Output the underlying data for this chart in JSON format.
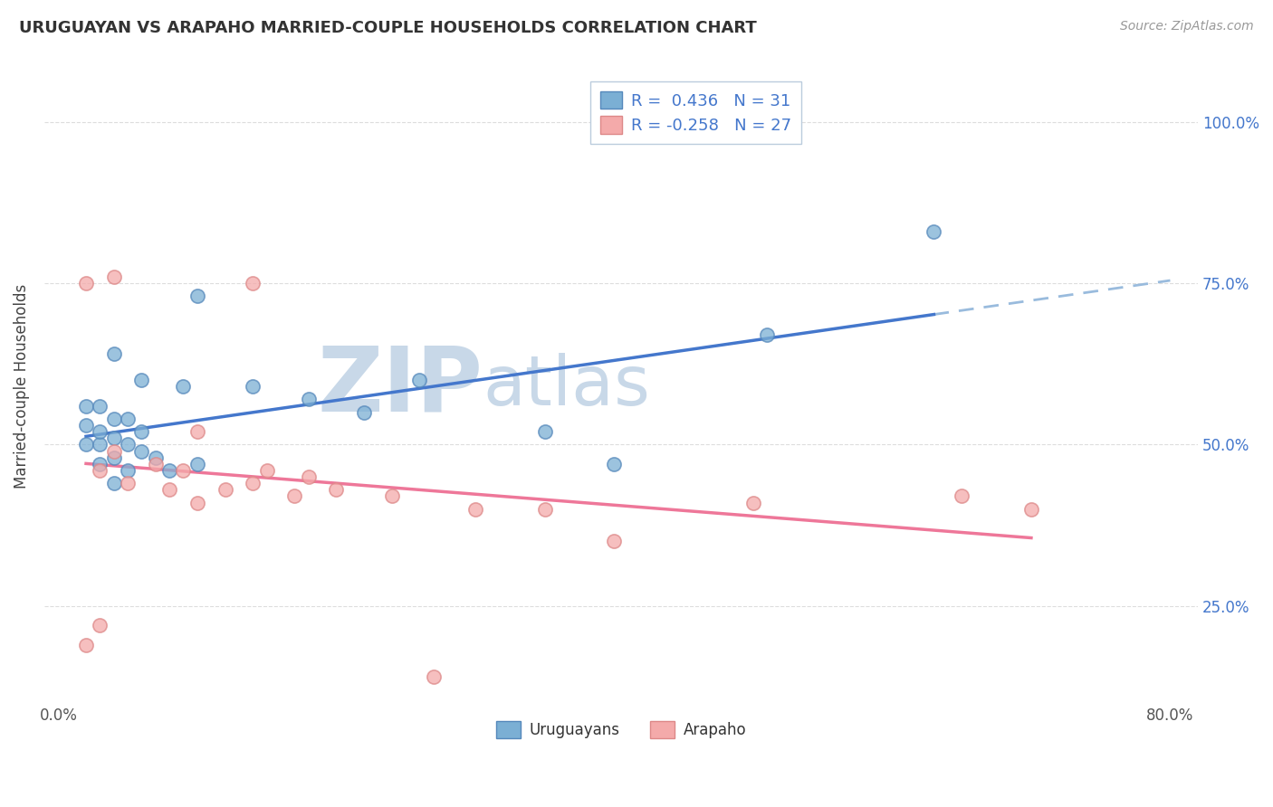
{
  "title": "URUGUAYAN VS ARAPAHO MARRIED-COUPLE HOUSEHOLDS CORRELATION CHART",
  "source": "Source: ZipAtlas.com",
  "ylabel": "Married-couple Households",
  "xlim": [
    -0.01,
    0.82
  ],
  "ylim": [
    0.1,
    1.08
  ],
  "yticks": [
    0.25,
    0.5,
    0.75,
    1.0
  ],
  "ytick_labels": [
    "25.0%",
    "50.0%",
    "75.0%",
    "100.0%"
  ],
  "xtick_positions": [
    0.0,
    0.8
  ],
  "xtick_labels": [
    "0.0%",
    "80.0%"
  ],
  "uruguayan_color": "#7BAFD4",
  "uruguayan_edge": "#5588BB",
  "arapaho_color": "#F4AAAA",
  "arapaho_edge": "#DD8888",
  "line1_color": "#4477CC",
  "line2_color": "#EE7799",
  "dashed_line_color": "#99BBDD",
  "r1_label": "R =  0.436",
  "n1_label": "N = 31",
  "r2_label": "R = -0.258",
  "n2_label": "N = 27",
  "watermark_zip": "ZIP",
  "watermark_atlas": "atlas",
  "watermark_color": "#C8D8E8",
  "background_color": "#FFFFFF",
  "grid_color": "#DDDDDD",
  "uruguayan_x": [
    0.02,
    0.02,
    0.02,
    0.03,
    0.03,
    0.03,
    0.03,
    0.04,
    0.04,
    0.04,
    0.04,
    0.04,
    0.05,
    0.05,
    0.05,
    0.06,
    0.06,
    0.06,
    0.07,
    0.08,
    0.09,
    0.1,
    0.1,
    0.14,
    0.18,
    0.22,
    0.26,
    0.35,
    0.4,
    0.51,
    0.63
  ],
  "uruguayan_y": [
    0.5,
    0.53,
    0.56,
    0.47,
    0.5,
    0.52,
    0.56,
    0.44,
    0.48,
    0.51,
    0.54,
    0.64,
    0.46,
    0.5,
    0.54,
    0.49,
    0.52,
    0.6,
    0.48,
    0.46,
    0.59,
    0.47,
    0.73,
    0.59,
    0.57,
    0.55,
    0.6,
    0.52,
    0.47,
    0.67,
    0.83
  ],
  "arapaho_x": [
    0.02,
    0.02,
    0.03,
    0.03,
    0.04,
    0.04,
    0.05,
    0.07,
    0.08,
    0.09,
    0.1,
    0.1,
    0.12,
    0.14,
    0.14,
    0.15,
    0.17,
    0.18,
    0.2,
    0.24,
    0.27,
    0.3,
    0.35,
    0.4,
    0.5,
    0.65,
    0.7
  ],
  "arapaho_y": [
    0.19,
    0.75,
    0.46,
    0.22,
    0.49,
    0.76,
    0.44,
    0.47,
    0.43,
    0.46,
    0.41,
    0.52,
    0.43,
    0.44,
    0.75,
    0.46,
    0.42,
    0.45,
    0.43,
    0.42,
    0.14,
    0.4,
    0.4,
    0.35,
    0.41,
    0.42,
    0.4
  ]
}
